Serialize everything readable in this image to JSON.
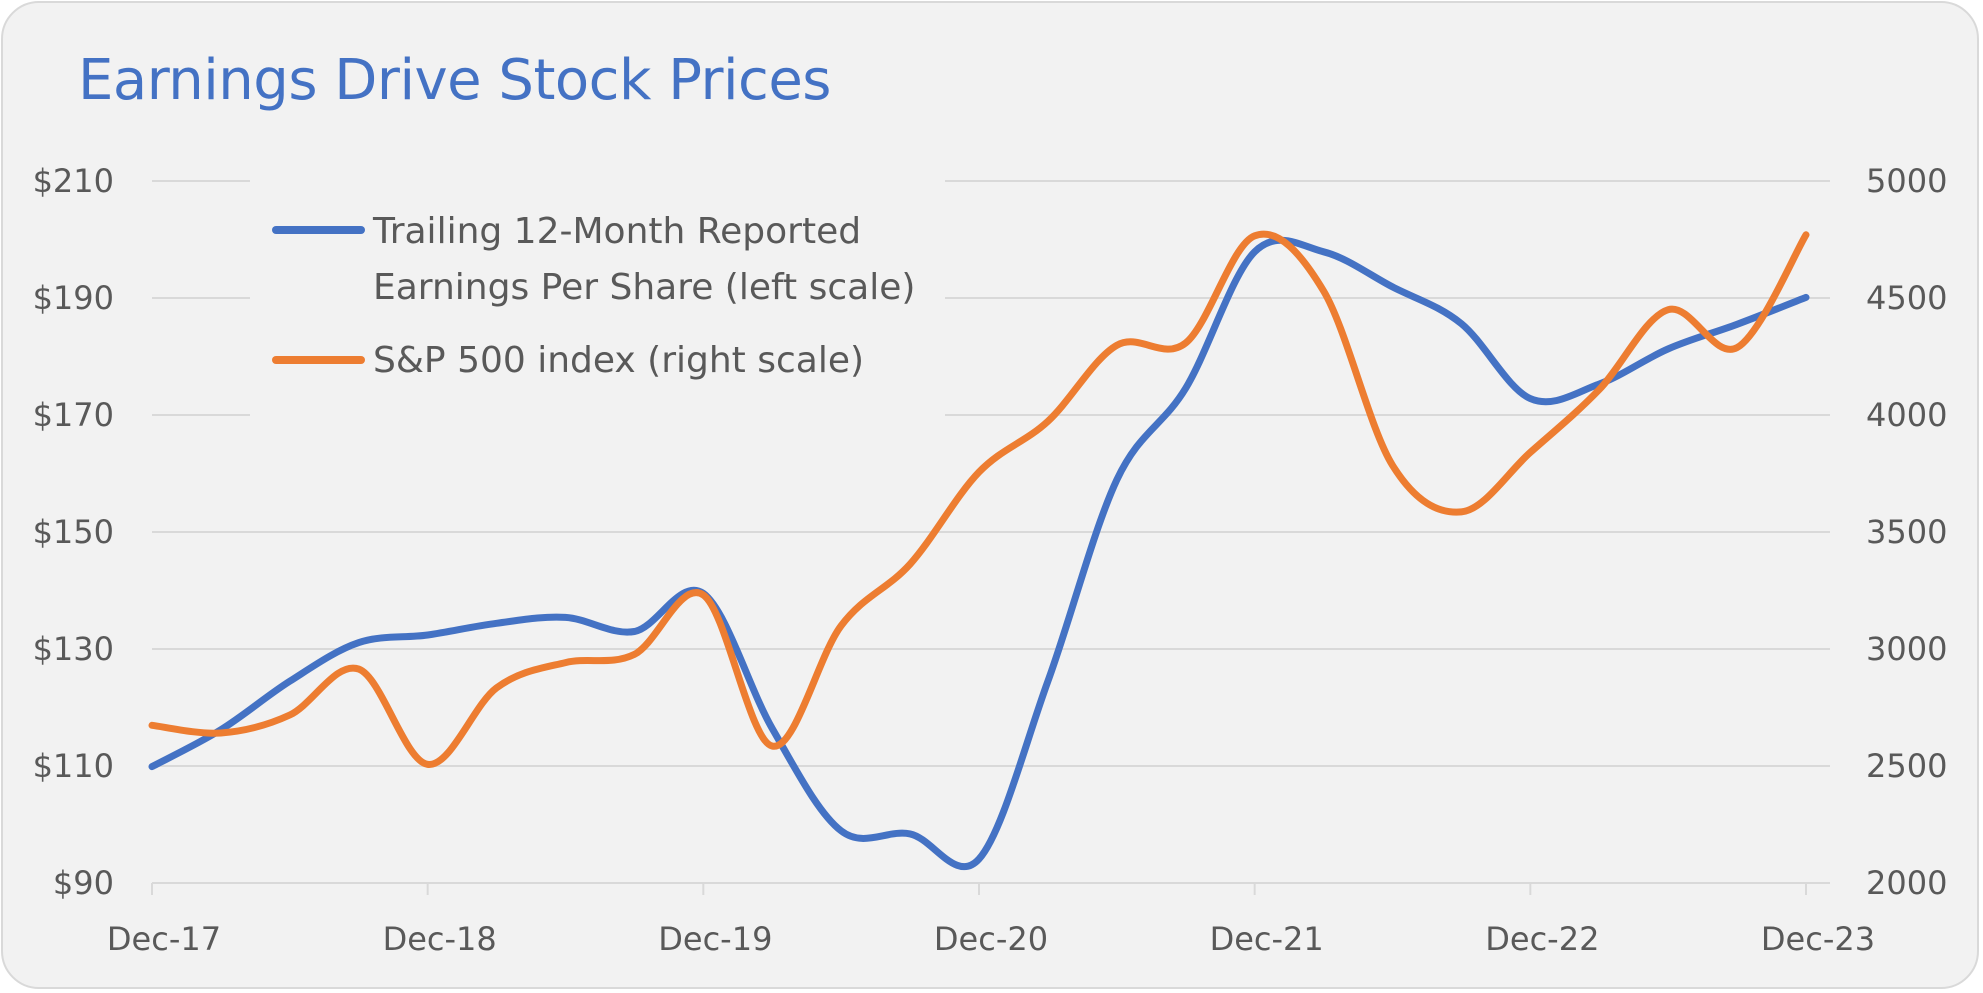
{
  "chart_data": {
    "type": "line",
    "title": "Earnings Drive Stock Prices",
    "x_ticks": [
      "Dec-17",
      "Dec-18",
      "Dec-19",
      "Dec-20",
      "Dec-21",
      "Dec-22",
      "Dec-23"
    ],
    "y_left_ticks": [
      "$90",
      "$110",
      "$130",
      "$150",
      "$170",
      "$190",
      "$210"
    ],
    "y_right_ticks": [
      "2000",
      "2500",
      "3000",
      "3500",
      "4000",
      "4500",
      "5000"
    ],
    "ylim_left": [
      90,
      210
    ],
    "ylim_right": [
      2000,
      5000
    ],
    "grid": true,
    "legend_position": "top-left",
    "series": [
      {
        "name": "Trailing 12-Month Reported Earnings Per Share (left scale)",
        "axis": "left",
        "color": "#4472c4",
        "x": [
          "Dec-17",
          "Mar-18",
          "Jun-18",
          "Sep-18",
          "Dec-18",
          "Mar-19",
          "Jun-19",
          "Sep-19",
          "Dec-19",
          "Mar-20",
          "Jun-20",
          "Sep-20",
          "Dec-20",
          "Mar-21",
          "Jun-21",
          "Sep-21",
          "Dec-21",
          "Mar-22",
          "Jun-22",
          "Sep-22",
          "Dec-22",
          "Mar-23",
          "Jun-23",
          "Sep-23",
          "Dec-23"
        ],
        "values": [
          109.9,
          116.2,
          124.5,
          131.1,
          132.4,
          134.4,
          135.4,
          133.0,
          139.5,
          116.4,
          98.9,
          98.4,
          94.1,
          124.5,
          158.9,
          174.6,
          197.9,
          197.9,
          191.9,
          185.6,
          172.8,
          175.3,
          181.3,
          185.5,
          190.1
        ]
      },
      {
        "name": "S&P 500 index (right scale)",
        "axis": "right",
        "color": "#ed7d31",
        "x": [
          "Dec-17",
          "Mar-18",
          "Jun-18",
          "Sep-18",
          "Dec-18",
          "Mar-19",
          "Jun-19",
          "Sep-19",
          "Dec-19",
          "Mar-20",
          "Jun-20",
          "Sep-20",
          "Dec-20",
          "Mar-21",
          "Jun-21",
          "Sep-21",
          "Dec-21",
          "Mar-22",
          "Jun-22",
          "Sep-22",
          "Dec-22",
          "Mar-23",
          "Jun-23",
          "Sep-23",
          "Dec-23"
        ],
        "values": [
          2674,
          2641,
          2718,
          2914,
          2507,
          2834,
          2942,
          2977,
          3231,
          2585,
          3100,
          3363,
          3756,
          3973,
          4298,
          4308,
          4766,
          4530,
          3785,
          3586,
          3840,
          4109,
          4450,
          4288,
          4770
        ]
      }
    ]
  }
}
